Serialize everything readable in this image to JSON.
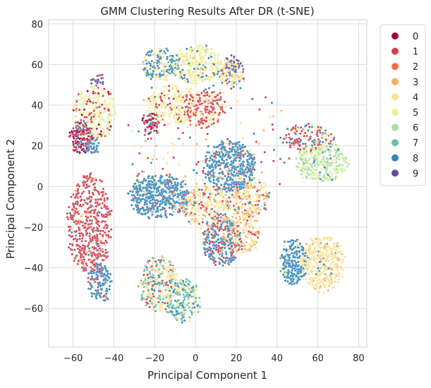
{
  "chart_data": {
    "type": "scatter",
    "title": "GMM Clustering Results After DR (t-SNE)",
    "xlabel": "Principal Component 1",
    "ylabel": "Principal Component 2",
    "xlim": [
      -72,
      84
    ],
    "ylim": [
      -79,
      82
    ],
    "xticks": [
      -60,
      -40,
      -20,
      0,
      20,
      40,
      60,
      80
    ],
    "yticks": [
      -60,
      -40,
      -20,
      0,
      20,
      40,
      60,
      80
    ],
    "grid": true,
    "legend_position": "outside-top-right",
    "series": [
      {
        "name": "0",
        "color": "#9e0142"
      },
      {
        "name": "1",
        "color": "#d53e4f"
      },
      {
        "name": "2",
        "color": "#f46d43"
      },
      {
        "name": "3",
        "color": "#fdae61"
      },
      {
        "name": "4",
        "color": "#fee08b"
      },
      {
        "name": "5",
        "color": "#e6f598"
      },
      {
        "name": "6",
        "color": "#abdda4"
      },
      {
        "name": "7",
        "color": "#66c2a5"
      },
      {
        "name": "8",
        "color": "#3288bd"
      },
      {
        "name": "9",
        "color": "#5e4fa2"
      }
    ],
    "clusters": [
      {
        "cx": -52,
        "cy": -18,
        "rx": 10,
        "ry": 23,
        "n": 520,
        "mix": {
          "1": 0.86,
          "3": 0.04,
          "8": 0.05,
          "4": 0.05
        }
      },
      {
        "cx": -47,
        "cy": -47,
        "rx": 5,
        "ry": 9,
        "n": 150,
        "mix": {
          "8": 0.85,
          "1": 0.1,
          "4": 0.05
        }
      },
      {
        "cx": -50,
        "cy": 36,
        "rx": 10,
        "ry": 13,
        "n": 300,
        "mix": {
          "5": 0.62,
          "1": 0.2,
          "4": 0.12,
          "0": 0.06
        }
      },
      {
        "cx": -56,
        "cy": 24,
        "rx": 5,
        "ry": 7,
        "n": 160,
        "mix": {
          "0": 0.6,
          "1": 0.25,
          "8": 0.15
        }
      },
      {
        "cx": -51,
        "cy": 20,
        "rx": 3,
        "ry": 4,
        "n": 50,
        "mix": {
          "8": 0.9,
          "1": 0.1
        }
      },
      {
        "cx": -48,
        "cy": 52,
        "rx": 3,
        "ry": 3,
        "n": 25,
        "mix": {
          "9": 0.8,
          "1": 0.2
        }
      },
      {
        "cx": -17,
        "cy": 60,
        "rx": 9,
        "ry": 7,
        "n": 200,
        "mix": {
          "8": 0.6,
          "4": 0.3,
          "5": 0.1
        }
      },
      {
        "cx": 1,
        "cy": 60,
        "rx": 12,
        "ry": 9,
        "n": 280,
        "mix": {
          "5": 0.5,
          "4": 0.35,
          "8": 0.15
        }
      },
      {
        "cx": 18,
        "cy": 56,
        "rx": 6,
        "ry": 7,
        "n": 140,
        "mix": {
          "4": 0.7,
          "8": 0.2,
          "1": 0.1
        }
      },
      {
        "cx": 18,
        "cy": 60,
        "rx": 3,
        "ry": 4,
        "n": 40,
        "mix": {
          "9": 0.85,
          "4": 0.15
        }
      },
      {
        "cx": -12,
        "cy": 40,
        "rx": 11,
        "ry": 9,
        "n": 250,
        "mix": {
          "5": 0.55,
          "4": 0.25,
          "1": 0.2
        }
      },
      {
        "cx": 5,
        "cy": 38,
        "rx": 9,
        "ry": 9,
        "n": 220,
        "mix": {
          "1": 0.6,
          "4": 0.25,
          "5": 0.15
        }
      },
      {
        "cx": -22,
        "cy": 31,
        "rx": 4,
        "ry": 5,
        "n": 60,
        "mix": {
          "0": 0.5,
          "1": 0.4,
          "8": 0.1
        }
      },
      {
        "cx": 17,
        "cy": 10,
        "rx": 12,
        "ry": 12,
        "n": 450,
        "mix": {
          "8": 0.85,
          "1": 0.08,
          "4": 0.07
        }
      },
      {
        "cx": 26,
        "cy": -5,
        "rx": 10,
        "ry": 9,
        "n": 200,
        "mix": {
          "4": 0.45,
          "3": 0.25,
          "8": 0.2,
          "1": 0.1
        }
      },
      {
        "cx": 55,
        "cy": 24,
        "rx": 12,
        "ry": 6,
        "n": 150,
        "mix": {
          "1": 0.5,
          "8": 0.3,
          "5": 0.2
        }
      },
      {
        "cx": 62,
        "cy": 12,
        "rx": 12,
        "ry": 9,
        "n": 330,
        "mix": {
          "6": 0.55,
          "5": 0.4,
          "8": 0.05
        }
      },
      {
        "cx": -18,
        "cy": -5,
        "rx": 14,
        "ry": 10,
        "n": 500,
        "mix": {
          "8": 0.9,
          "1": 0.05,
          "4": 0.05
        }
      },
      {
        "cx": 5,
        "cy": -10,
        "rx": 12,
        "ry": 10,
        "n": 260,
        "mix": {
          "4": 0.55,
          "3": 0.2,
          "1": 0.15,
          "8": 0.1
        }
      },
      {
        "cx": 13,
        "cy": -27,
        "rx": 9,
        "ry": 12,
        "n": 350,
        "mix": {
          "8": 0.55,
          "1": 0.3,
          "4": 0.1,
          "3": 0.05
        }
      },
      {
        "cx": 23,
        "cy": -22,
        "rx": 8,
        "ry": 10,
        "n": 160,
        "mix": {
          "3": 0.45,
          "4": 0.45,
          "1": 0.1
        }
      },
      {
        "cx": 48,
        "cy": -37,
        "rx": 6,
        "ry": 11,
        "n": 240,
        "mix": {
          "8": 0.92,
          "4": 0.08
        }
      },
      {
        "cx": 62,
        "cy": -38,
        "rx": 10,
        "ry": 13,
        "n": 380,
        "mix": {
          "4": 0.85,
          "3": 0.1,
          "8": 0.05
        }
      },
      {
        "cx": -18,
        "cy": -48,
        "rx": 9,
        "ry": 13,
        "n": 300,
        "mix": {
          "4": 0.45,
          "7": 0.3,
          "1": 0.15,
          "8": 0.1
        }
      },
      {
        "cx": -6,
        "cy": -56,
        "rx": 8,
        "ry": 10,
        "n": 220,
        "mix": {
          "7": 0.5,
          "4": 0.3,
          "8": 0.2
        }
      },
      {
        "cx": 6,
        "cy": 20,
        "rx": 40,
        "ry": 35,
        "n": 180,
        "mix": {
          "1": 0.35,
          "4": 0.3,
          "8": 0.2,
          "3": 0.15
        }
      }
    ]
  }
}
